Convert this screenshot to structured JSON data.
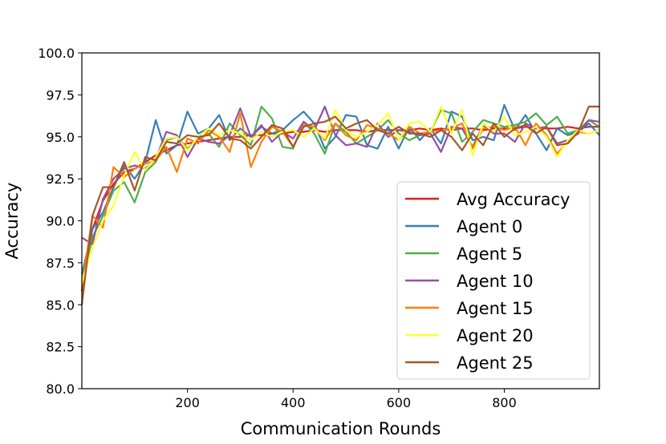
{
  "chart_data": {
    "type": "line",
    "title": "",
    "xlabel": "Communication Rounds",
    "ylabel": "Accuracy",
    "xlim": [
      0,
      980
    ],
    "ylim": [
      80.0,
      100.0
    ],
    "xticks": [
      200,
      400,
      600,
      800
    ],
    "yticks": [
      80.0,
      82.5,
      85.0,
      87.5,
      90.0,
      92.5,
      95.0,
      97.5,
      100.0
    ],
    "xtick_labels": [
      "200",
      "400",
      "600",
      "800"
    ],
    "ytick_labels": [
      "80.0",
      "82.5",
      "85.0",
      "87.5",
      "90.0",
      "92.5",
      "95.0",
      "97.5",
      "100.0"
    ],
    "grid": false,
    "legend_position": "lower-right",
    "x": [
      0,
      20,
      40,
      60,
      80,
      100,
      120,
      140,
      160,
      180,
      200,
      220,
      240,
      260,
      280,
      300,
      320,
      340,
      360,
      380,
      400,
      420,
      440,
      460,
      480,
      500,
      520,
      540,
      560,
      580,
      600,
      620,
      640,
      660,
      680,
      700,
      720,
      740,
      760,
      780,
      800,
      820,
      840,
      860,
      880,
      900,
      920,
      940,
      960,
      980
    ],
    "series": [
      {
        "name": "Avg Accuracy",
        "color": "#e41a1c",
        "values": [
          85.8,
          89.5,
          91.2,
          92.2,
          92.9,
          93.1,
          93.5,
          93.9,
          94.2,
          94.5,
          94.6,
          94.7,
          94.8,
          94.9,
          95.0,
          95.0,
          95.1,
          95.1,
          95.2,
          95.2,
          95.3,
          95.3,
          95.4,
          95.3,
          95.4,
          95.4,
          95.4,
          95.3,
          95.4,
          95.4,
          95.4,
          95.4,
          95.5,
          95.4,
          95.5,
          95.4,
          95.5,
          95.5,
          95.4,
          95.5,
          95.5,
          95.5,
          95.6,
          95.5,
          95.5,
          95.5,
          95.6,
          95.5,
          95.6,
          95.6
        ]
      },
      {
        "name": "Agent 0",
        "color": "#377eb8",
        "values": [
          86.8,
          89.5,
          90.5,
          92.0,
          93.3,
          92.5,
          93.5,
          96.0,
          94.0,
          94.5,
          96.5,
          95.2,
          95.5,
          96.3,
          94.8,
          95.5,
          95.0,
          95.6,
          95.2,
          95.4,
          96.0,
          96.5,
          95.8,
          94.3,
          95.0,
          96.3,
          96.2,
          94.5,
          94.3,
          95.6,
          94.3,
          95.6,
          94.8,
          95.5,
          94.6,
          96.5,
          96.2,
          94.8,
          95.0,
          94.8,
          96.9,
          95.4,
          96.3,
          95.2,
          94.2,
          95.5,
          95.1,
          95.3,
          95.8,
          95.1
        ]
      },
      {
        "name": "Agent 5",
        "color": "#4daf4a",
        "values": [
          86.3,
          89.0,
          90.3,
          91.8,
          92.3,
          91.1,
          92.9,
          93.5,
          94.8,
          95.0,
          94.3,
          94.9,
          95.2,
          94.4,
          95.8,
          95.1,
          94.5,
          96.8,
          96.1,
          94.4,
          94.3,
          95.9,
          95.2,
          94.0,
          95.8,
          95.3,
          94.6,
          95.0,
          95.4,
          96.0,
          95.2,
          94.8,
          95.1,
          95.3,
          96.6,
          96.4,
          94.7,
          95.3,
          96.0,
          95.8,
          95.6,
          95.7,
          95.9,
          96.4,
          95.7,
          96.2,
          95.2,
          95.4,
          96.0,
          95.6
        ]
      },
      {
        "name": "Agent 10",
        "color": "#984ea3",
        "values": [
          89.0,
          88.6,
          91.3,
          92.5,
          93.1,
          93.3,
          93.1,
          93.7,
          95.3,
          95.1,
          93.8,
          94.9,
          94.7,
          94.6,
          95.1,
          96.7,
          95.0,
          95.7,
          94.7,
          95.3,
          94.9,
          95.9,
          95.4,
          96.8,
          95.1,
          94.5,
          94.6,
          94.4,
          95.8,
          95.0,
          95.4,
          95.3,
          95.1,
          95.2,
          94.1,
          95.6,
          95.5,
          94.4,
          95.7,
          95.2,
          95.2,
          94.7,
          95.8,
          95.5,
          95.6,
          94.6,
          94.8,
          95.2,
          96.0,
          95.9
        ]
      },
      {
        "name": "Agent 15",
        "color": "#ff7f00",
        "values": [
          86.0,
          90.3,
          89.6,
          93.2,
          92.6,
          93.1,
          93.4,
          93.6,
          94.4,
          92.9,
          94.9,
          94.6,
          95.4,
          95.0,
          94.1,
          96.4,
          93.2,
          94.7,
          95.6,
          95.3,
          94.4,
          95.7,
          95.6,
          94.8,
          95.8,
          95.1,
          94.8,
          95.7,
          95.5,
          95.2,
          94.8,
          95.6,
          95.2,
          95.3,
          95.4,
          95.5,
          95.8,
          94.3,
          95.5,
          95.6,
          95.4,
          95.6,
          94.5,
          95.8,
          95.1,
          94.0,
          94.7,
          95.3,
          95.2,
          95.4
        ]
      },
      {
        "name": "Agent 20",
        "color": "#ffff33",
        "values": [
          86.3,
          88.4,
          90.0,
          90.9,
          92.7,
          94.1,
          93.0,
          93.8,
          94.9,
          95.0,
          94.2,
          95.0,
          95.5,
          95.1,
          95.4,
          95.2,
          94.8,
          95.3,
          95.0,
          95.3,
          95.4,
          95.0,
          95.5,
          94.9,
          96.6,
          95.4,
          95.0,
          95.3,
          95.7,
          96.4,
          94.8,
          95.8,
          95.9,
          95.3,
          96.8,
          95.2,
          96.6,
          93.9,
          95.8,
          95.3,
          96.2,
          95.1,
          95.3,
          95.6,
          95.0,
          93.8,
          94.8,
          95.4,
          95.2,
          95.4
        ]
      },
      {
        "name": "Agent 25",
        "color": "#a65628",
        "values": [
          85.0,
          90.3,
          92.0,
          92.0,
          93.5,
          91.8,
          93.8,
          93.6,
          94.7,
          94.6,
          95.1,
          95.0,
          95.1,
          95.8,
          94.9,
          94.8,
          94.3,
          95.0,
          95.7,
          95.5,
          94.4,
          95.6,
          95.8,
          95.9,
          96.2,
          95.5,
          95.8,
          96.0,
          95.4,
          95.2,
          95.6,
          95.2,
          95.2,
          95.0,
          95.4,
          95.0,
          94.2,
          95.2,
          94.5,
          95.8,
          95.0,
          95.5,
          95.7,
          95.2,
          95.6,
          94.5,
          94.6,
          95.3,
          96.8,
          96.8
        ]
      }
    ]
  }
}
